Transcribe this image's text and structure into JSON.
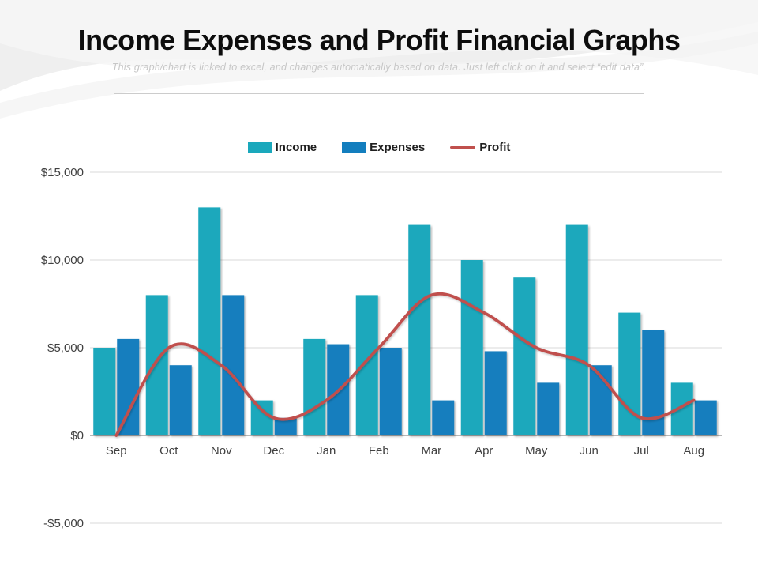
{
  "slide": {
    "title": "Income Expenses and Profit Financial Graphs",
    "subtitle": "This graph/chart is linked to excel, and changes automatically based on data. Just left click on it and select “edit data”."
  },
  "chart_data": {
    "type": "bar",
    "subtype": "grouped-bars-with-smooth-line",
    "categories": [
      "Sep",
      "Oct",
      "Nov",
      "Dec",
      "Jan",
      "Feb",
      "Mar",
      "Apr",
      "May",
      "Jun",
      "Jul",
      "Aug"
    ],
    "series": [
      {
        "name": "Income",
        "type": "bar",
        "color": "#1AA8BC",
        "values": [
          5000,
          8000,
          13000,
          2000,
          5500,
          8000,
          12000,
          10000,
          9000,
          12000,
          7000,
          3000
        ]
      },
      {
        "name": "Expenses",
        "type": "bar",
        "color": "#137EBE",
        "values": [
          5500,
          4000,
          8000,
          1000,
          5200,
          5000,
          2000,
          4800,
          3000,
          4000,
          6000,
          2000
        ]
      },
      {
        "name": "Profit",
        "type": "line",
        "color": "#C0504D",
        "values": [
          0,
          5000,
          4000,
          1000,
          2000,
          5000,
          8000,
          7000,
          5000,
          4000,
          1000,
          2000
        ]
      }
    ],
    "y_ticks": [
      {
        "value": 15000,
        "label": "$15,000"
      },
      {
        "value": 10000,
        "label": "$10,000"
      },
      {
        "value": 5000,
        "label": "$5,000"
      },
      {
        "value": 0,
        "label": "$0"
      },
      {
        "value": -5000,
        "label": "-$5,000"
      }
    ],
    "ylim": [
      -5000,
      15000
    ],
    "grid": true,
    "legend_position": "top"
  },
  "colors": {
    "grid": "#d9d9d9",
    "zero_line": "#a0a0a0",
    "axis_text": "#404040",
    "title": "#0d0d0d",
    "subtitle": "#c7c7c7",
    "divider": "#cccccc",
    "swoosh_dark": "#eeeeee",
    "swoosh_light": "#f6f6f6"
  }
}
